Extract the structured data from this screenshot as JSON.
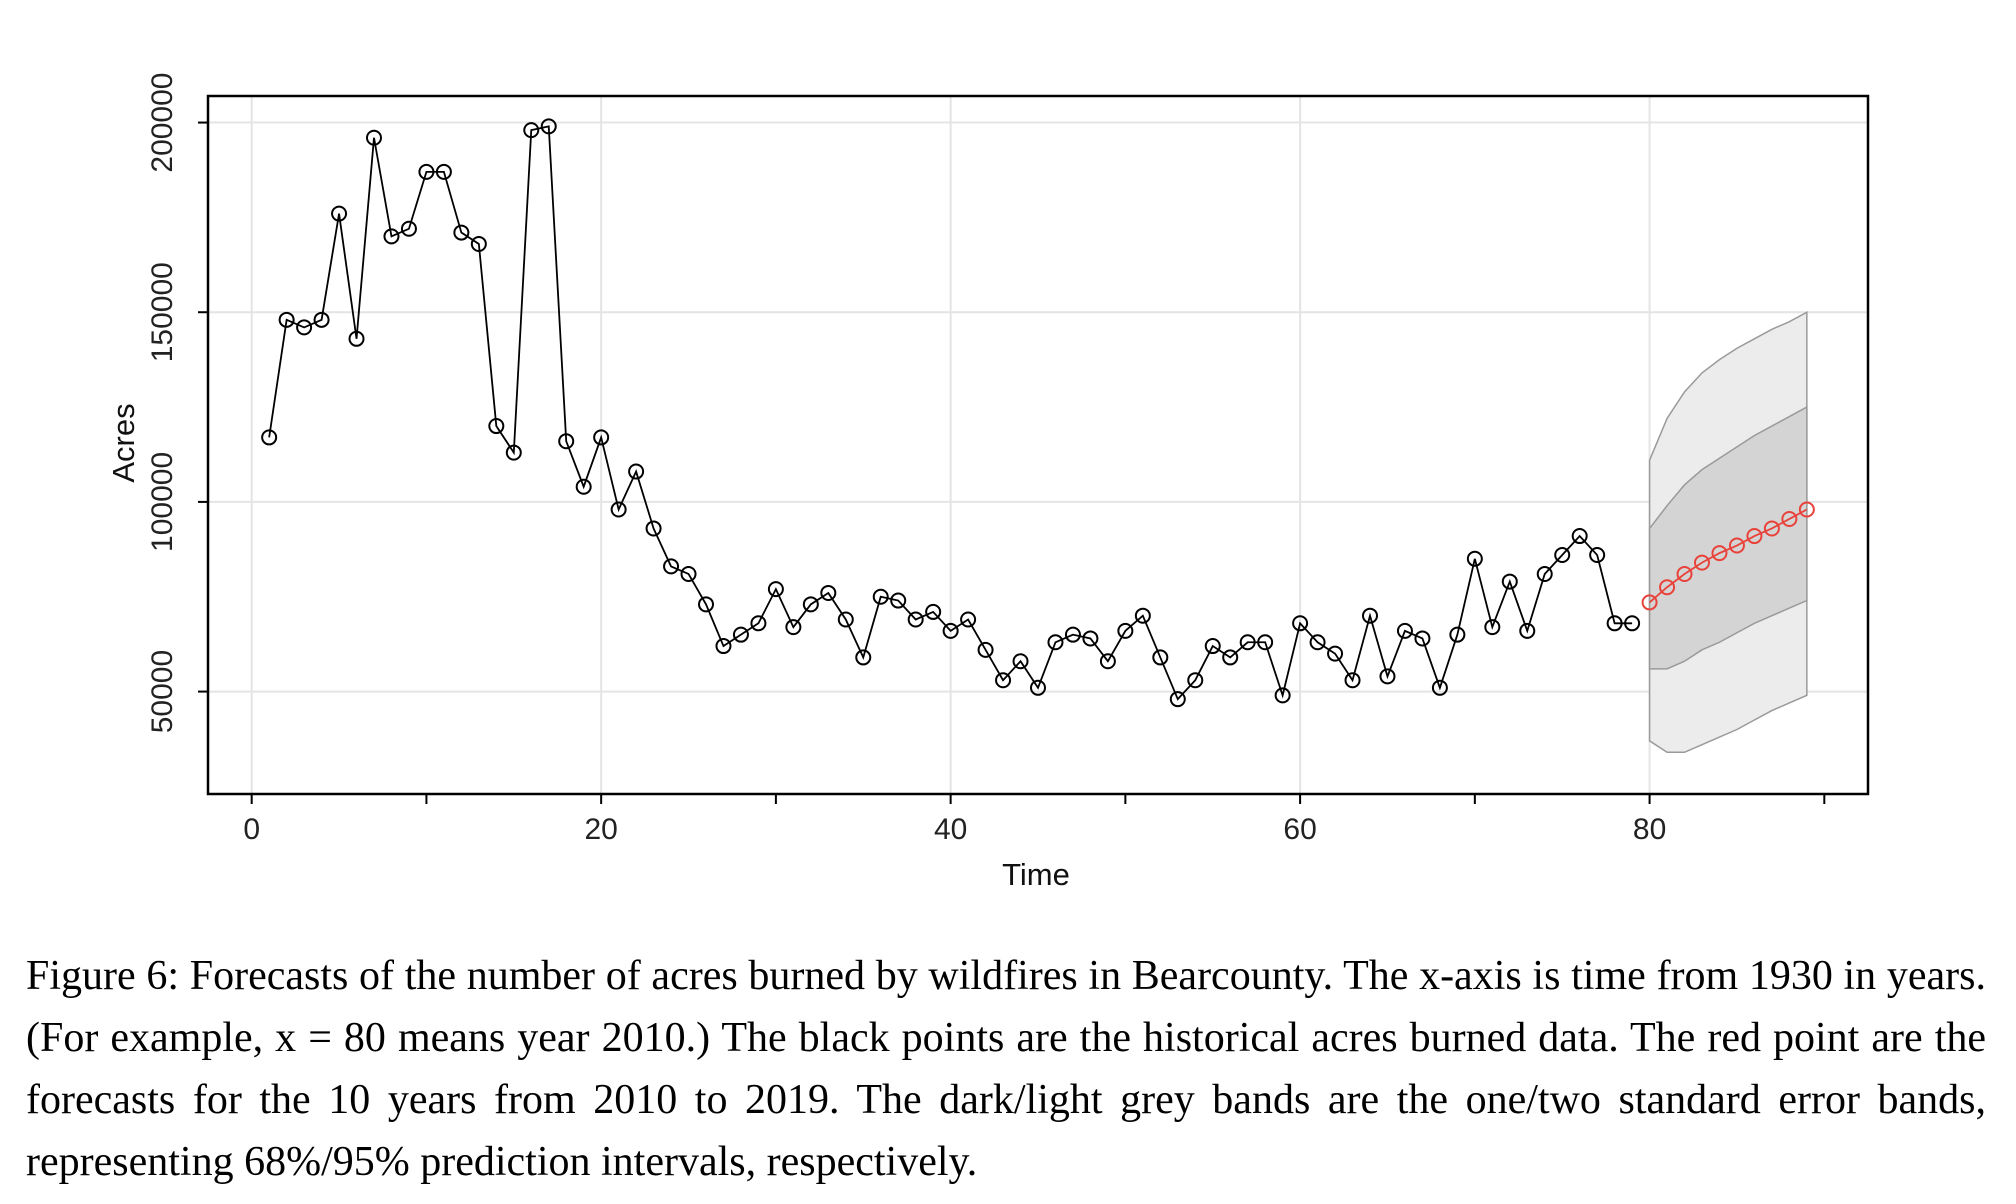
{
  "chart_data": {
    "type": "line",
    "title": "",
    "xlabel": "Time",
    "ylabel": "Acres",
    "xlim": [
      -2.5,
      92.5
    ],
    "ylim": [
      23000,
      207000
    ],
    "grid": true,
    "x_ticks": [
      0,
      20,
      40,
      60,
      80
    ],
    "x_tick_labels": [
      "0",
      "20",
      "40",
      "60",
      "80"
    ],
    "y_ticks": [
      50000,
      100000,
      150000,
      200000
    ],
    "y_tick_labels": [
      "50000",
      "100000",
      "150000",
      "200000"
    ],
    "series": [
      {
        "role": "historical",
        "color": "#000000",
        "marker": "open-circle",
        "x": [
          1,
          2,
          3,
          4,
          5,
          6,
          7,
          8,
          9,
          10,
          11,
          12,
          13,
          14,
          15,
          16,
          17,
          18,
          19,
          20,
          21,
          22,
          23,
          24,
          25,
          26,
          27,
          28,
          29,
          30,
          31,
          32,
          33,
          34,
          35,
          36,
          37,
          38,
          39,
          40,
          41,
          42,
          43,
          44,
          45,
          46,
          47,
          48,
          49,
          50,
          51,
          52,
          53,
          54,
          55,
          56,
          57,
          58,
          59,
          60,
          61,
          62,
          63,
          64,
          65,
          66,
          67,
          68,
          69,
          70,
          71,
          72,
          73,
          74,
          75,
          76,
          77,
          78,
          79
        ],
        "y": [
          117000,
          148000,
          146000,
          148000,
          176000,
          143000,
          196000,
          170000,
          172000,
          187000,
          187000,
          171000,
          168000,
          120000,
          113000,
          198000,
          199000,
          116000,
          104000,
          117000,
          98000,
          108000,
          93000,
          83000,
          81000,
          73000,
          62000,
          65000,
          68000,
          77000,
          67000,
          73000,
          76000,
          69000,
          59000,
          75000,
          74000,
          69000,
          71000,
          66000,
          69000,
          61000,
          53000,
          58000,
          51000,
          63000,
          65000,
          64000,
          58000,
          66000,
          70000,
          59000,
          48000,
          53000,
          62000,
          59000,
          63000,
          63000,
          49000,
          68000,
          63000,
          60000,
          53000,
          70000,
          54000,
          66000,
          64000,
          51000,
          65000,
          85000,
          67000,
          79000,
          66000,
          81000,
          86000,
          91000,
          86000,
          68000,
          68000
        ]
      },
      {
        "role": "forecast",
        "color": "#e8423a",
        "marker": "open-circle",
        "x": [
          80,
          81,
          82,
          83,
          84,
          85,
          86,
          87,
          88,
          89
        ],
        "y": [
          73500,
          77500,
          81000,
          84000,
          86500,
          88500,
          91000,
          93000,
          95500,
          98000
        ]
      }
    ],
    "bands": [
      {
        "role": "two standard error band (95%)",
        "color": "#ececec",
        "x": [
          80,
          81,
          82,
          83,
          84,
          85,
          86,
          87,
          88,
          89
        ],
        "lower": [
          37000,
          34000,
          34000,
          36000,
          38000,
          40000,
          42500,
          45000,
          47000,
          49000
        ],
        "upper": [
          111000,
          122000,
          129000,
          134000,
          137500,
          140500,
          143000,
          145500,
          147500,
          150000
        ]
      },
      {
        "role": "one standard error band (68%)",
        "color": "#d4d4d4",
        "x": [
          80,
          81,
          82,
          83,
          84,
          85,
          86,
          87,
          88,
          89
        ],
        "lower": [
          56000,
          56000,
          58000,
          61000,
          63000,
          65500,
          68000,
          70000,
          72000,
          74000
        ],
        "upper": [
          93000,
          99000,
          104500,
          108500,
          111500,
          114500,
          117500,
          120000,
          122500,
          125000
        ]
      }
    ]
  },
  "caption": "Figure 6: Forecasts of the number of acres burned by wildfires in Bearcounty. The x-axis is time from 1930 in years. (For example, x = 80 means year 2010.) The black points are the historical acres burned data. The red point are the forecasts for the 10 years from 2010 to 2019. The dark/light grey bands are the one/two standard error bands, representing 68%/95% prediction intervals, respectively."
}
